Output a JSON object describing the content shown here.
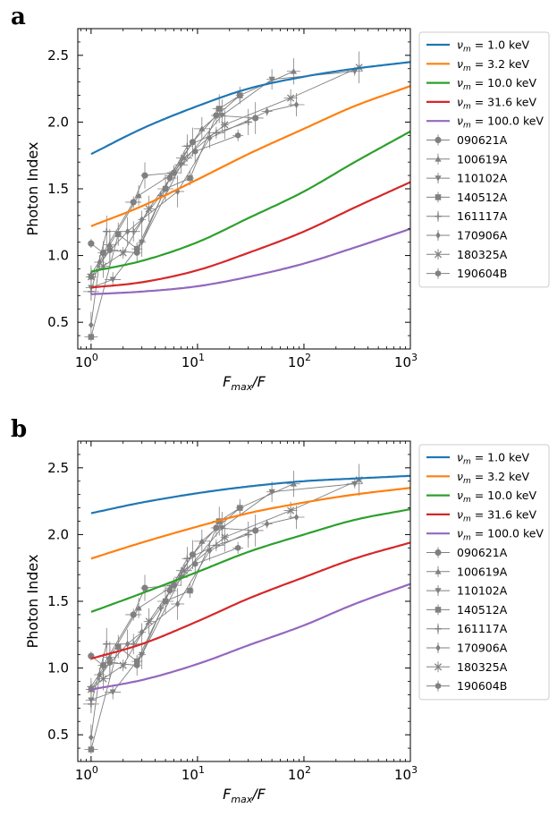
{
  "chart_data": [
    {
      "panel": "a",
      "type": "line",
      "xlabel": "F_max/F",
      "ylabel": "Photon Index",
      "xscale": "log",
      "xlim": [
        0.75,
        1000
      ],
      "ylim": [
        0.3,
        2.7
      ],
      "xticks": [
        1,
        10,
        100,
        1000
      ],
      "xtick_labels": [
        "10^0",
        "10^1",
        "10^2",
        "10^3"
      ],
      "yticks": [
        0.5,
        1.0,
        1.5,
        2.0,
        2.5
      ],
      "ytick_labels": [
        "0.5",
        "1.0",
        "1.5",
        "2.0",
        "2.5"
      ],
      "legend": "outside-right",
      "model_series": [
        {
          "name": "ν_m = 1.0 keV",
          "color": "#1f77b4",
          "x": [
            1,
            3,
            10,
            30,
            100,
            300,
            1000
          ],
          "values": [
            1.76,
            1.95,
            2.12,
            2.25,
            2.34,
            2.4,
            2.45
          ]
        },
        {
          "name": "ν_m = 3.2 keV",
          "color": "#ff7f0e",
          "x": [
            1,
            3,
            10,
            30,
            100,
            300,
            1000
          ],
          "values": [
            1.22,
            1.37,
            1.57,
            1.76,
            1.95,
            2.12,
            2.27
          ]
        },
        {
          "name": "ν_m = 10.0 keV",
          "color": "#2ca02c",
          "x": [
            1,
            3,
            10,
            30,
            100,
            300,
            1000
          ],
          "values": [
            0.88,
            0.96,
            1.1,
            1.28,
            1.48,
            1.7,
            1.93
          ]
        },
        {
          "name": "ν_m = 31.6 keV",
          "color": "#d62728",
          "x": [
            1,
            3,
            10,
            30,
            100,
            300,
            1000
          ],
          "values": [
            0.76,
            0.8,
            0.89,
            1.02,
            1.18,
            1.36,
            1.55
          ]
        },
        {
          "name": "ν_m = 100.0 keV",
          "color": "#9467bd",
          "x": [
            1,
            3,
            10,
            30,
            100,
            300,
            1000
          ],
          "values": [
            0.71,
            0.73,
            0.77,
            0.84,
            0.94,
            1.06,
            1.2
          ]
        }
      ],
      "grb_series": [
        {
          "name": "090621A",
          "marker": "circle",
          "x": [
            1.0,
            1.3,
            2.5,
            3.2,
            6.0,
            9.0,
            15,
            35
          ],
          "values": [
            1.09,
            1.02,
            1.4,
            1.6,
            1.62,
            1.85,
            2.05,
            2.03
          ]
        },
        {
          "name": "100619A",
          "marker": "triangle-up",
          "x": [
            1.0,
            1.5,
            2.8,
            5.5,
            11,
            25,
            80
          ],
          "values": [
            0.86,
            1.08,
            1.45,
            1.6,
            1.95,
            2.2,
            2.38
          ]
        },
        {
          "name": "110102A",
          "marker": "triangle-down",
          "x": [
            1.0,
            1.6,
            3.0,
            7.0,
            17,
            50,
            300
          ],
          "values": [
            0.76,
            0.82,
            1.1,
            1.68,
            2.05,
            2.32,
            2.38
          ]
        },
        {
          "name": "140512A",
          "marker": "square",
          "x": [
            1.0,
            1.8,
            2.7,
            5.0,
            8.5,
            16,
            25
          ],
          "values": [
            0.39,
            1.16,
            1.05,
            1.5,
            1.58,
            2.1,
            2.2
          ]
        },
        {
          "name": "161117A",
          "marker": "plus",
          "x": [
            1.0,
            1.4,
            2.5,
            4.5,
            8.0,
            15,
            30
          ],
          "values": [
            0.73,
            1.18,
            1.18,
            1.45,
            1.82,
            1.92,
            2.0
          ]
        },
        {
          "name": "170906A",
          "marker": "diamond",
          "x": [
            1.0,
            1.2,
            2.2,
            3.0,
            6.5,
            13,
            45,
            85
          ],
          "values": [
            0.48,
            0.95,
            1.18,
            1.27,
            1.48,
            1.88,
            2.08,
            2.13
          ]
        },
        {
          "name": "180325A",
          "marker": "x",
          "x": [
            1.0,
            1.3,
            2.0,
            3.5,
            7.5,
            18,
            75,
            330
          ],
          "values": [
            0.84,
            0.92,
            1.02,
            1.35,
            1.73,
            1.98,
            2.18,
            2.41
          ]
        },
        {
          "name": "190604B",
          "marker": "hexagon",
          "x": [
            1.0,
            1.5,
            2.7,
            5.5,
            9.5,
            24
          ],
          "values": [
            0.84,
            1.04,
            1.02,
            1.58,
            1.78,
            1.9
          ]
        }
      ]
    },
    {
      "panel": "b",
      "type": "line",
      "xlabel": "F_max/F",
      "ylabel": "Photon Index",
      "xscale": "log",
      "xlim": [
        0.75,
        1000
      ],
      "ylim": [
        0.3,
        2.7
      ],
      "xticks": [
        1,
        10,
        100,
        1000
      ],
      "xtick_labels": [
        "10^0",
        "10^1",
        "10^2",
        "10^3"
      ],
      "yticks": [
        0.5,
        1.0,
        1.5,
        2.0,
        2.5
      ],
      "ytick_labels": [
        "0.5",
        "1.0",
        "1.5",
        "2.0",
        "2.5"
      ],
      "legend": "outside-right",
      "model_series": [
        {
          "name": "ν_m = 1.0 keV",
          "color": "#1f77b4",
          "x": [
            1,
            3,
            10,
            30,
            100,
            300,
            1000
          ],
          "values": [
            2.16,
            2.24,
            2.31,
            2.36,
            2.4,
            2.42,
            2.44
          ]
        },
        {
          "name": "ν_m = 3.2 keV",
          "color": "#ff7f0e",
          "x": [
            1,
            3,
            10,
            30,
            100,
            300,
            1000
          ],
          "values": [
            1.82,
            1.94,
            2.06,
            2.16,
            2.24,
            2.3,
            2.35
          ]
        },
        {
          "name": "ν_m = 10.0 keV",
          "color": "#2ca02c",
          "x": [
            1,
            3,
            10,
            30,
            100,
            300,
            1000
          ],
          "values": [
            1.42,
            1.56,
            1.72,
            1.87,
            2.0,
            2.11,
            2.19
          ]
        },
        {
          "name": "ν_m = 31.6 keV",
          "color": "#d62728",
          "x": [
            1,
            3,
            10,
            30,
            100,
            300,
            1000
          ],
          "values": [
            1.07,
            1.18,
            1.35,
            1.52,
            1.68,
            1.82,
            1.94
          ]
        },
        {
          "name": "ν_m = 100.0 keV",
          "color": "#9467bd",
          "x": [
            1,
            3,
            10,
            30,
            100,
            300,
            1000
          ],
          "values": [
            0.84,
            0.91,
            1.03,
            1.17,
            1.32,
            1.48,
            1.63
          ]
        }
      ],
      "grb_series": [
        {
          "name": "090621A",
          "marker": "circle",
          "x": [
            1.0,
            1.3,
            2.5,
            3.2,
            6.0,
            9.0,
            15,
            35
          ],
          "values": [
            1.09,
            1.02,
            1.4,
            1.6,
            1.62,
            1.85,
            2.05,
            2.03
          ]
        },
        {
          "name": "100619A",
          "marker": "triangle-up",
          "x": [
            1.0,
            1.5,
            2.8,
            5.5,
            11,
            25,
            80
          ],
          "values": [
            0.86,
            1.08,
            1.45,
            1.6,
            1.95,
            2.2,
            2.38
          ]
        },
        {
          "name": "110102A",
          "marker": "triangle-down",
          "x": [
            1.0,
            1.6,
            3.0,
            7.0,
            17,
            50,
            300
          ],
          "values": [
            0.76,
            0.82,
            1.1,
            1.68,
            2.05,
            2.32,
            2.38
          ]
        },
        {
          "name": "140512A",
          "marker": "square",
          "x": [
            1.0,
            1.8,
            2.7,
            5.0,
            8.5,
            16,
            25
          ],
          "values": [
            0.39,
            1.16,
            1.05,
            1.5,
            1.58,
            2.1,
            2.2
          ]
        },
        {
          "name": "161117A",
          "marker": "plus",
          "x": [
            1.0,
            1.4,
            2.5,
            4.5,
            8.0,
            15,
            30
          ],
          "values": [
            0.73,
            1.18,
            1.18,
            1.45,
            1.82,
            1.92,
            2.0
          ]
        },
        {
          "name": "170906A",
          "marker": "diamond",
          "x": [
            1.0,
            1.2,
            2.2,
            3.0,
            6.5,
            13,
            45,
            85
          ],
          "values": [
            0.48,
            0.95,
            1.18,
            1.27,
            1.48,
            1.88,
            2.08,
            2.13
          ]
        },
        {
          "name": "180325A",
          "marker": "x",
          "x": [
            1.0,
            1.3,
            2.0,
            3.5,
            7.5,
            18,
            75,
            330
          ],
          "values": [
            0.84,
            0.92,
            1.02,
            1.35,
            1.73,
            1.98,
            2.18,
            2.41
          ]
        },
        {
          "name": "190604B",
          "marker": "hexagon",
          "x": [
            1.0,
            1.5,
            2.7,
            5.5,
            9.5,
            24
          ],
          "values": [
            0.84,
            1.04,
            1.02,
            1.58,
            1.78,
            1.9
          ]
        }
      ]
    }
  ],
  "panels": [
    {
      "letter": "a"
    },
    {
      "letter": "b"
    }
  ],
  "colors": {
    "grb_marker": "#808080"
  }
}
